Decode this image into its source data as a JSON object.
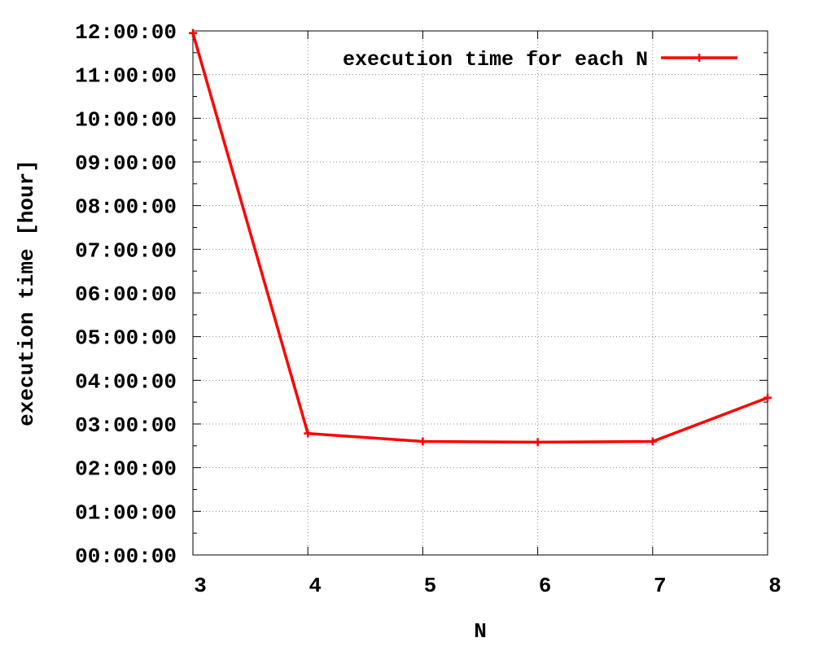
{
  "chart_data": {
    "type": "line",
    "title": "",
    "xlabel": "N",
    "ylabel": "execution time [hour]",
    "x": [
      3,
      4,
      5,
      6,
      7,
      8
    ],
    "xticks": [
      "3",
      "4",
      "5",
      "6",
      "7",
      "8"
    ],
    "xlim": [
      3,
      8
    ],
    "ylim": [
      "00:00:00",
      "12:00:00"
    ],
    "yticks": [
      "00:00:00",
      "01:00:00",
      "02:00:00",
      "03:00:00",
      "04:00:00",
      "05:00:00",
      "06:00:00",
      "07:00:00",
      "08:00:00",
      "09:00:00",
      "10:00:00",
      "11:00:00",
      "12:00:00"
    ],
    "grid": true,
    "legend_position": "top-right",
    "series": [
      {
        "name": "execution time for each N",
        "color": "#ff0000",
        "marker": "plus",
        "values": [
          "11:57:00",
          "02:47:00",
          "02:36:00",
          "02:35:00",
          "02:36:00",
          "03:36:00"
        ]
      }
    ]
  }
}
